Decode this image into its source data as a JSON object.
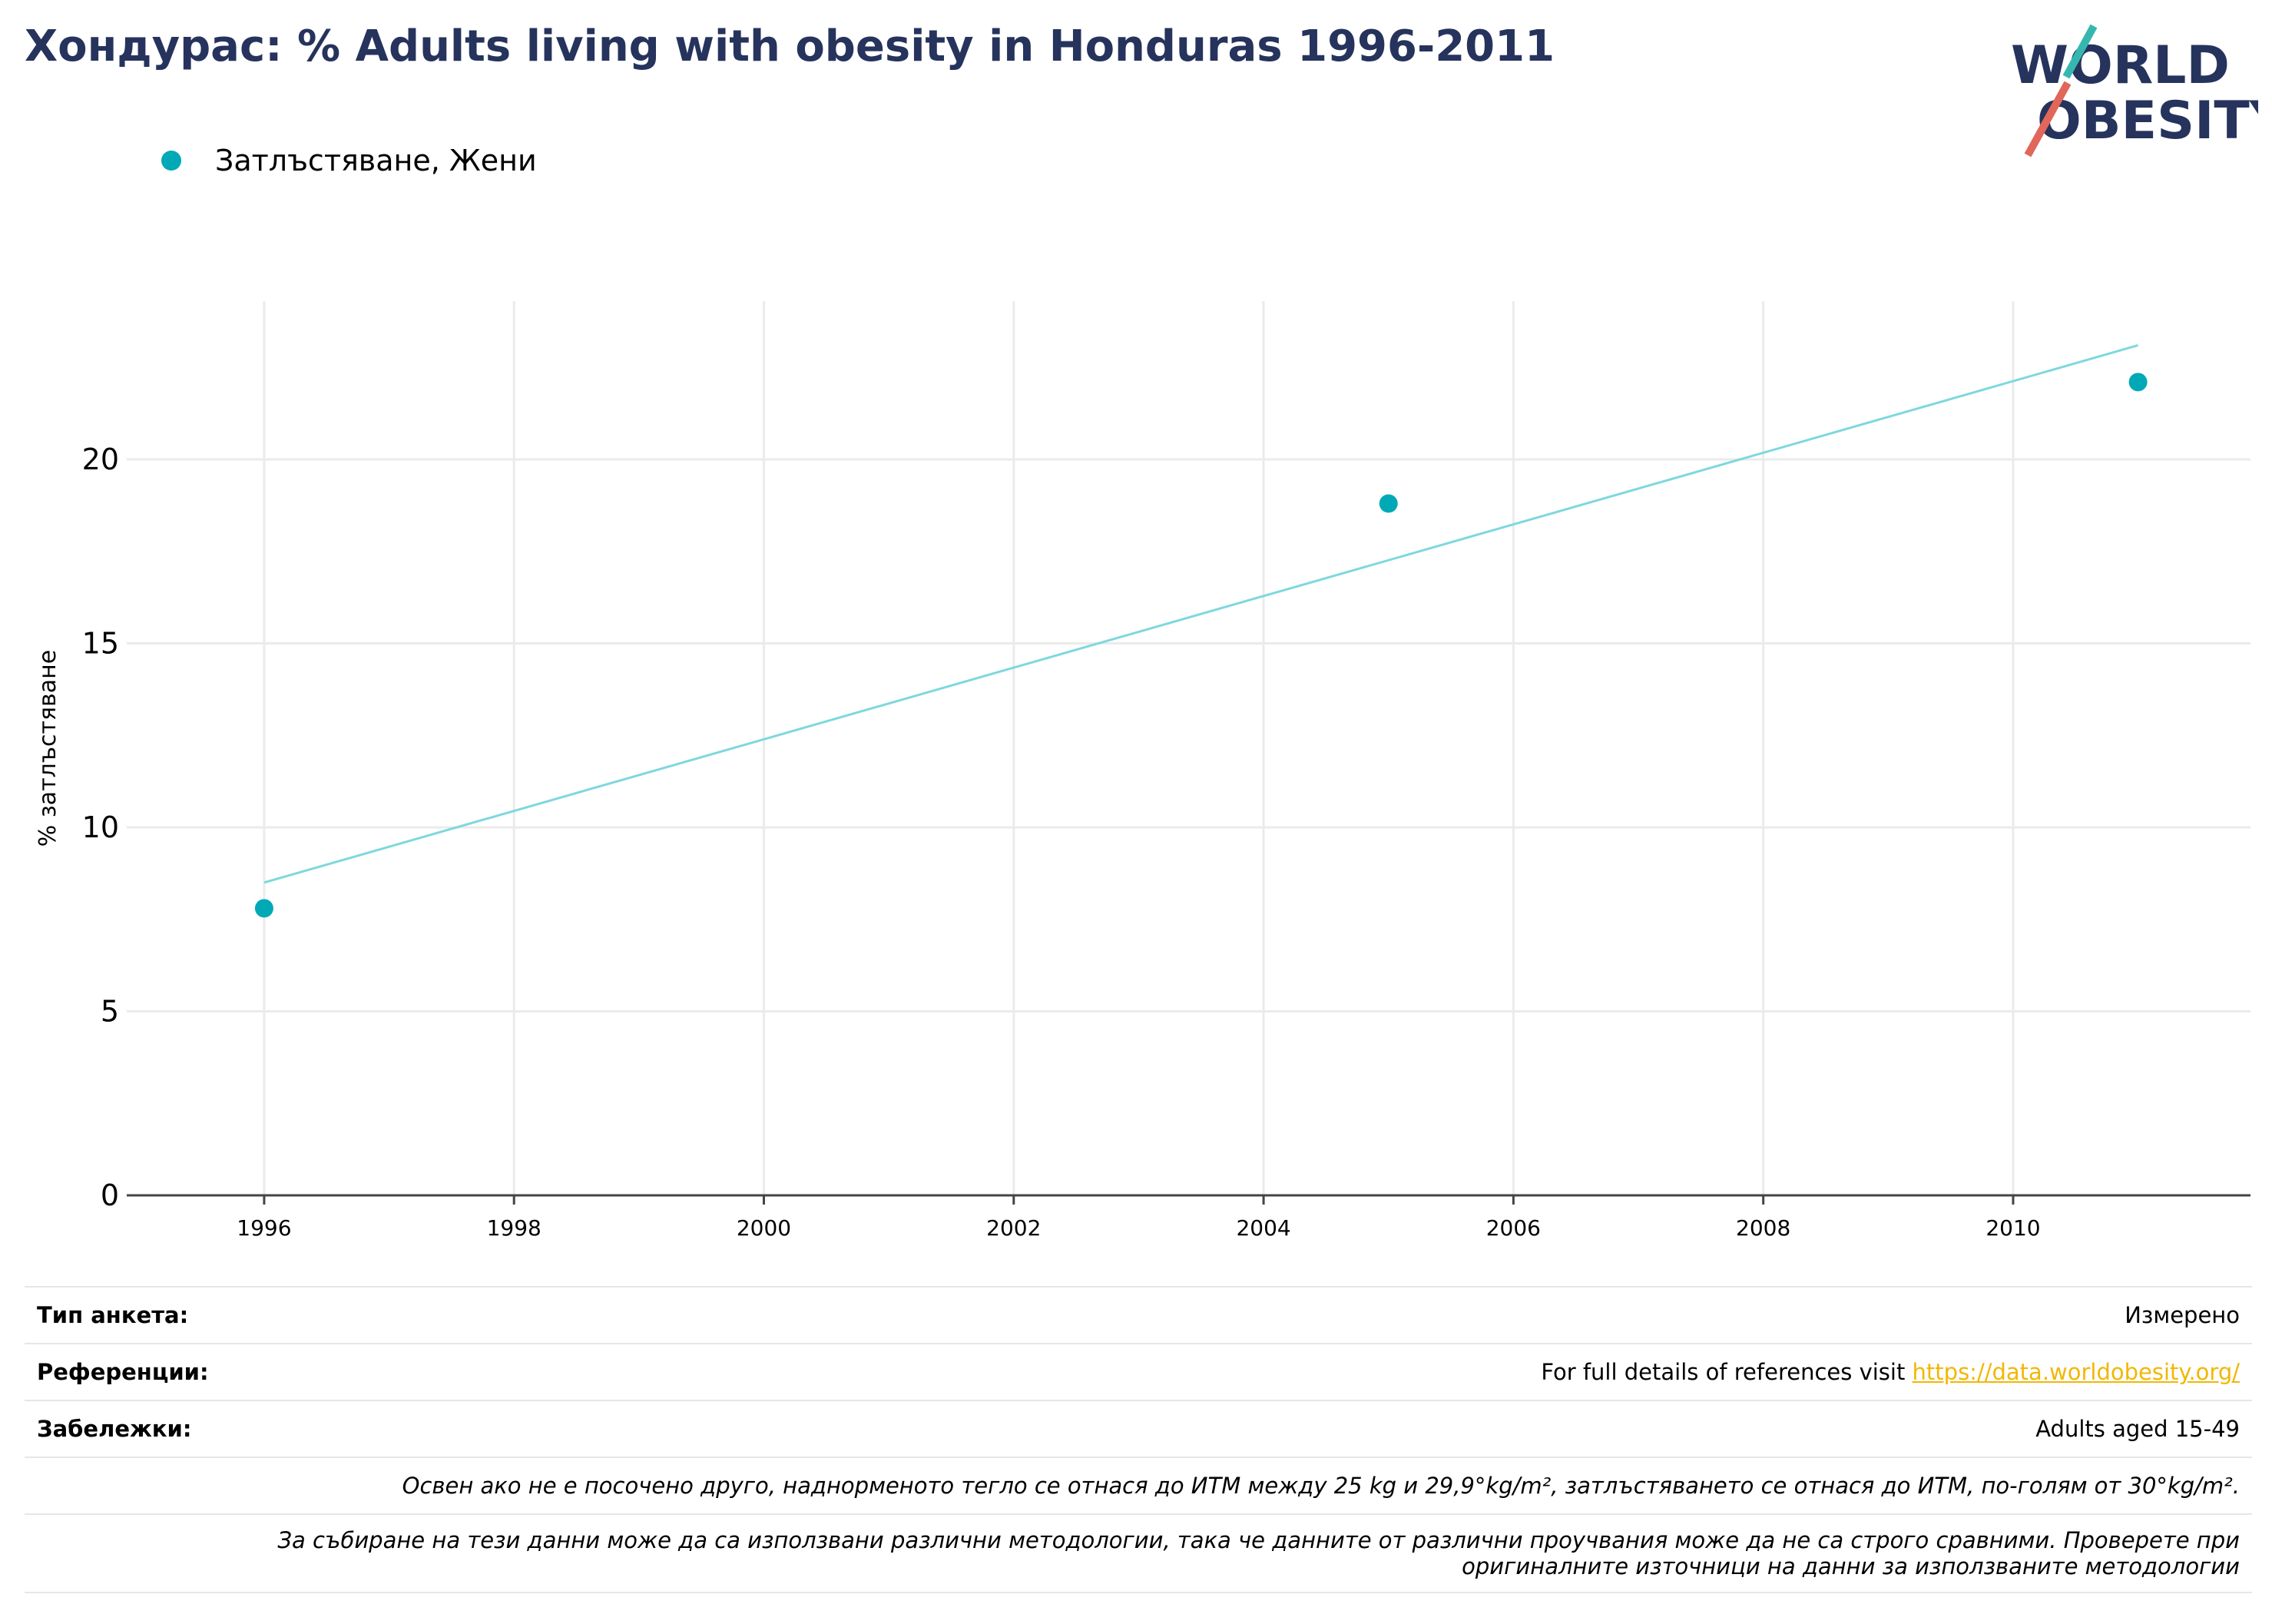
{
  "title": "Хондурас: % Adults living with obesity in Honduras 1996-2011",
  "logo": {
    "line1": "WORLD",
    "line2": "OBESITY"
  },
  "colors": {
    "title": "#26335c",
    "series": "#00a9b5",
    "trend": "#7ed8de",
    "link": "#f2b705",
    "logo_teal": "#35b7b0",
    "logo_red": "#e0675a"
  },
  "legend": {
    "label": "Затлъстяване, Жени"
  },
  "chart_data": {
    "type": "scatter",
    "title": "Хондурас: % Adults living with obesity in Honduras 1996-2011",
    "xlabel": "",
    "ylabel": "% затлъстяване",
    "xlim": [
      1994.9,
      2011.9
    ],
    "ylim": [
      0,
      24.3
    ],
    "x_ticks": [
      1996,
      1998,
      2000,
      2002,
      2004,
      2006,
      2008,
      2010
    ],
    "y_ticks": [
      0,
      5,
      10,
      15,
      20
    ],
    "grid": true,
    "legend_position": "top-left",
    "series": [
      {
        "name": "Затлъстяване, Жени",
        "x": [
          1996,
          2005,
          2011
        ],
        "y": [
          7.8,
          18.8,
          22.1
        ]
      }
    ],
    "trendline": {
      "x": [
        1996,
        2011
      ],
      "y": [
        8.5,
        23.1
      ]
    }
  },
  "info": {
    "survey_label": "Тип анкета:",
    "survey_value": "Измерено",
    "refs_label": "Референции:",
    "refs_text": "For full details of references visit ",
    "refs_link": "https://data.worldobesity.org/",
    "notes_label": "Забележки:",
    "notes_value": "Adults aged 15-49",
    "note_bmi": "Освен ако не е посочено друго, наднорменото тегло се отнася до ИТМ между 25 kg и 29,9°kg/m², затлъстяването се отнася до ИТМ, по-голям от 30°kg/m².",
    "note_method_1": "За събиране на тези данни може да са използвани различни методологии, така че данните от различни проучвания може да не са строго сравними. Проверете при",
    "note_method_2": "оригиналните източници на данни за използваните методологии"
  }
}
